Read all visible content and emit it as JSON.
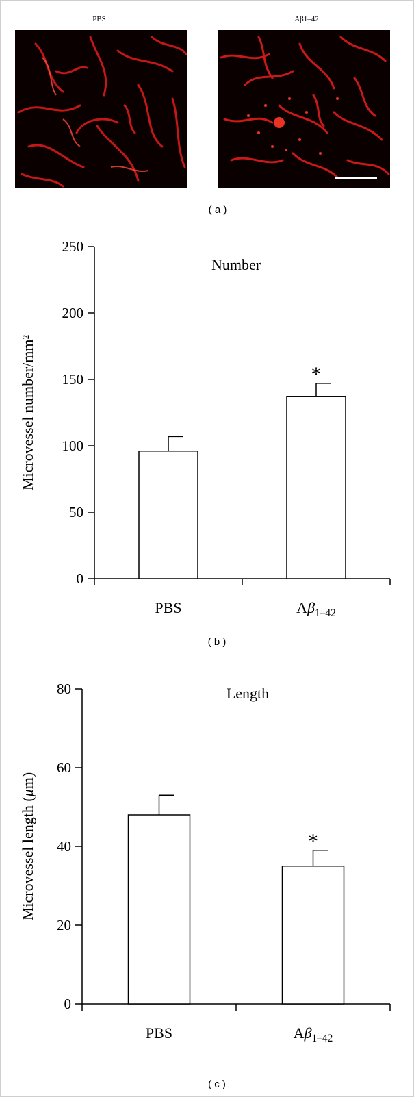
{
  "panel_a": {
    "label": "( a )",
    "images": [
      {
        "title": "PBS"
      },
      {
        "title": "Aβ1–42"
      }
    ]
  },
  "chart_data": [
    {
      "type": "bar",
      "panel_label": "( b )",
      "title": "Number",
      "ylabel": "Microvessel number/mm²",
      "categories": [
        "PBS",
        "Aβ1–42"
      ],
      "values": [
        96,
        137
      ],
      "errors": [
        11,
        10
      ],
      "significance": [
        "",
        "*"
      ],
      "ylim": [
        0,
        250
      ],
      "yticks": [
        0,
        50,
        100,
        150,
        200,
        250
      ],
      "grid": false,
      "bar_color": "#ffffff"
    },
    {
      "type": "bar",
      "panel_label": "( c )",
      "title": "Length",
      "ylabel": "Microvessel length (μm)",
      "categories": [
        "PBS",
        "Aβ1–42"
      ],
      "values": [
        48,
        35
      ],
      "errors": [
        5,
        4
      ],
      "significance": [
        "",
        "*"
      ],
      "ylim": [
        0,
        80
      ],
      "yticks": [
        0,
        20,
        40,
        60,
        80
      ],
      "grid": false,
      "bar_color": "#ffffff"
    }
  ]
}
